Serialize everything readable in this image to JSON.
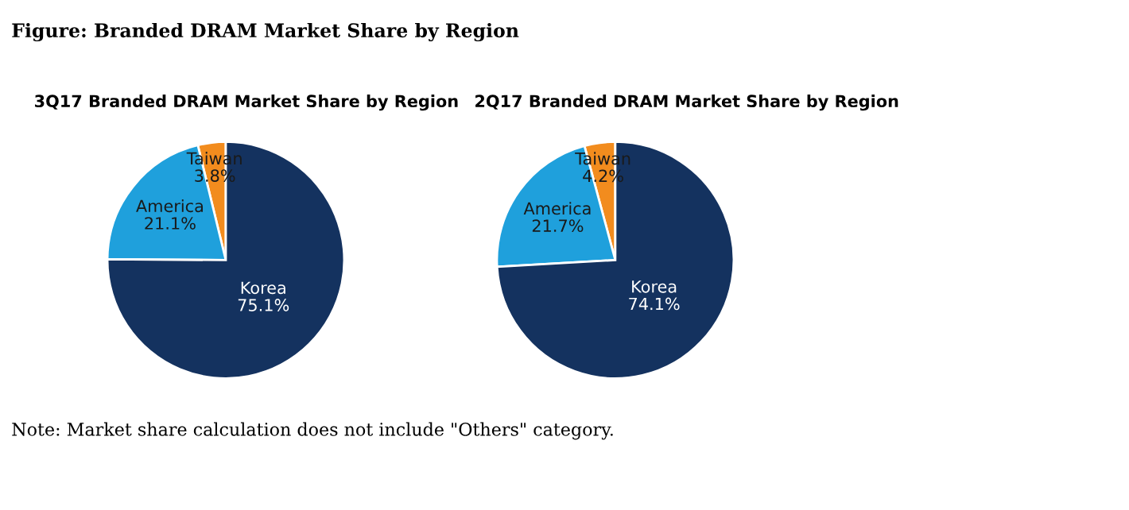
{
  "chart_data": [
    {
      "type": "pie",
      "title": "3Q17 Branded DRAM Market Share by Region",
      "categories": [
        "Taiwan",
        "America",
        "Korea"
      ],
      "values": [
        3.8,
        21.1,
        75.1
      ],
      "value_labels": [
        "3.8%",
        "21.1%",
        "75.1%"
      ],
      "colors": [
        "#f28c1e",
        "#1fa0dc",
        "#14325f"
      ],
      "annotations": [
        "Figure: Branded DRAM Market Share by Region",
        "Note: Market share calculation does not include \"Others\" category."
      ]
    },
    {
      "type": "pie",
      "title": "2Q17 Branded DRAM Market Share by Region",
      "categories": [
        "Taiwan",
        "America",
        "Korea"
      ],
      "values": [
        4.2,
        21.7,
        74.1
      ],
      "value_labels": [
        "4.2%",
        "21.7%",
        "74.1%"
      ],
      "colors": [
        "#f28c1e",
        "#1fa0dc",
        "#14325f"
      ]
    }
  ]
}
